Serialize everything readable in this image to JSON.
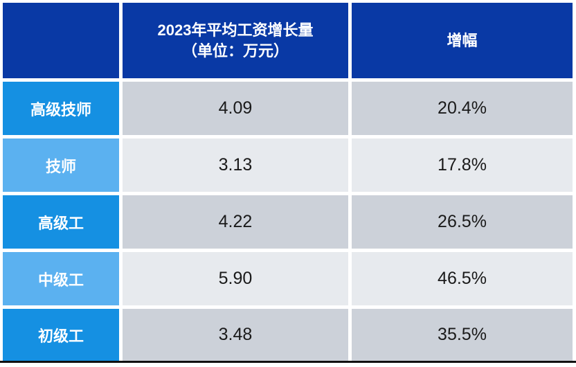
{
  "table": {
    "header": {
      "corner_label": "",
      "amount_label": "2023年平均工资增长量\n（单位：万元）",
      "growth_label": "增幅"
    },
    "rows": [
      {
        "label": "高级技师",
        "amount": "4.09",
        "growth": "20.4%"
      },
      {
        "label": "技师",
        "amount": "3.13",
        "growth": "17.8%"
      },
      {
        "label": "高级工",
        "amount": "4.22",
        "growth": "26.5%"
      },
      {
        "label": "中级工",
        "amount": "5.90",
        "growth": "46.5%"
      },
      {
        "label": "初级工",
        "amount": "3.48",
        "growth": "35.5%"
      }
    ]
  },
  "colors": {
    "header_blue": "#0939a5",
    "label_blue_dark": "#1590e2",
    "label_blue_light": "#5bb1f0",
    "cell_gray_dark": "#ccd1d9",
    "cell_gray_light": "#e7eaee",
    "bottom_rule": "#101010"
  },
  "chart_data": {
    "type": "table",
    "title": "2023年平均工资增长量与增幅",
    "columns": [
      "",
      "2023年平均工资增长量（单位：万元）",
      "增幅"
    ],
    "categories": [
      "高级技师",
      "技师",
      "高级工",
      "中级工",
      "初级工"
    ],
    "series": [
      {
        "name": "2023年平均工资增长量（万元）",
        "values": [
          4.09,
          3.13,
          4.22,
          5.9,
          3.48
        ]
      },
      {
        "name": "增幅",
        "values": [
          "20.4%",
          "17.8%",
          "26.5%",
          "46.5%",
          "35.5%"
        ]
      }
    ]
  }
}
